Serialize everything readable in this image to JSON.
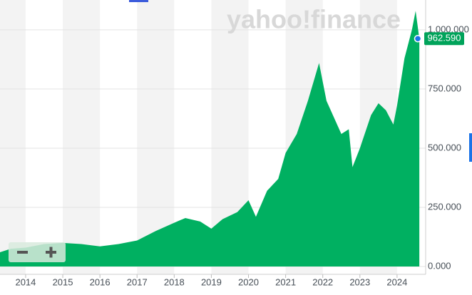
{
  "chart_data": {
    "type": "area",
    "watermark": "yahoo!finance",
    "x": [
      2013.3,
      2013.6,
      2014,
      2014.5,
      2015,
      2015.5,
      2016,
      2016.5,
      2017,
      2017.5,
      2018,
      2018.3,
      2018.7,
      2019,
      2019.3,
      2019.7,
      2020,
      2020.2,
      2020.5,
      2020.8,
      2021,
      2021.3,
      2021.6,
      2021.9,
      2022.1,
      2022.3,
      2022.5,
      2022.7,
      2022.8,
      2023,
      2023.3,
      2023.5,
      2023.7,
      2023.9,
      2024,
      2024.2,
      2024.4,
      2024.5,
      2024.6
    ],
    "series": [
      {
        "color": "#00b061",
        "values": [
          60,
          75,
          80,
          95,
          100,
          95,
          85,
          95,
          110,
          150,
          185,
          205,
          190,
          160,
          200,
          230,
          280,
          210,
          320,
          370,
          480,
          560,
          700,
          860,
          700,
          630,
          560,
          580,
          420,
          500,
          640,
          690,
          660,
          600,
          680,
          880,
          1000,
          1080,
          962.59
        ]
      }
    ],
    "last_price": {
      "value": 962.59,
      "label": "962.590"
    },
    "xlim": [
      2013.31,
      2024.77
    ],
    "xticks": [
      2014,
      2015,
      2016,
      2017,
      2018,
      2019,
      2020,
      2021,
      2022,
      2023,
      2024
    ],
    "ylim": [
      -33,
      1126
    ],
    "yticks": [
      {
        "value": 0,
        "label": "0.000"
      },
      {
        "value": 250,
        "label": "250.000"
      },
      {
        "value": 500,
        "label": "500.000"
      },
      {
        "value": 750,
        "label": "750.000"
      },
      {
        "value": 1000,
        "label": "1.000.000"
      }
    ],
    "grid": true
  }
}
